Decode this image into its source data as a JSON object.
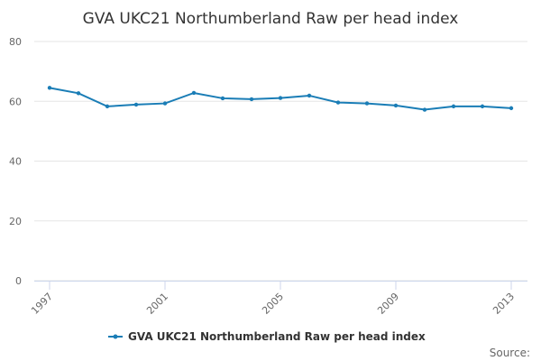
{
  "chart_data": {
    "type": "line",
    "title": "GVA UKC21 Northumberland Raw per head index",
    "x": [
      1997,
      1998,
      1999,
      2000,
      2001,
      2002,
      2003,
      2004,
      2005,
      2006,
      2007,
      2008,
      2009,
      2010,
      2011,
      2012,
      2013
    ],
    "series": [
      {
        "name": "GVA UKC21 Northumberland Raw per head index",
        "color": "#1a7db6",
        "values": [
          64.5,
          62.7,
          58.3,
          58.9,
          59.3,
          62.8,
          61.0,
          60.7,
          61.1,
          61.9,
          59.6,
          59.3,
          58.6,
          57.2,
          58.3,
          58.3,
          57.7
        ]
      }
    ],
    "xlim": [
      1997,
      2013
    ],
    "xticks": [
      1997,
      2001,
      2005,
      2009,
      2013
    ],
    "ylim": [
      0,
      80
    ],
    "yticks": [
      0,
      20,
      40,
      60,
      80
    ],
    "grid": true,
    "legend": "bottom",
    "source": "Source:"
  }
}
